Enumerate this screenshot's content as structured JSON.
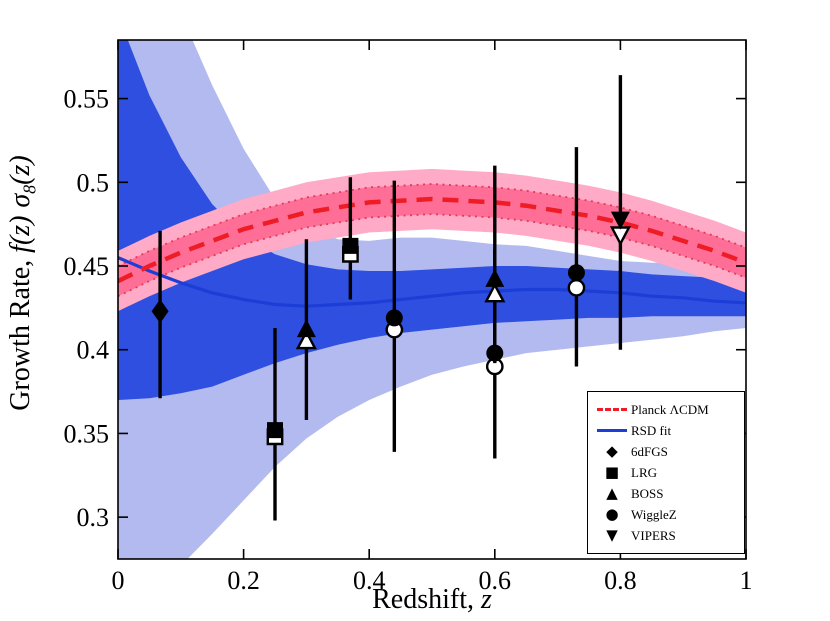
{
  "figure": {
    "background": "#ffffff"
  },
  "chart_data": {
    "type": "line",
    "title": "",
    "xlabel": "Redshift, z",
    "ylabel": "Growth Rate, f(z) σ_8(z)",
    "xlabel_parts": {
      "prefix": "Redshift, ",
      "variable": "z"
    },
    "ylabel_parts": {
      "prefix": "Growth Rate, ",
      "fz": "f(z)",
      "sigma": "σ",
      "sub": "8",
      "paren": "(z)"
    },
    "xlim": [
      0,
      1
    ],
    "ylim": [
      0.275,
      0.585
    ],
    "xticks": [
      0,
      0.2,
      0.4,
      0.6,
      0.8,
      1
    ],
    "xtick_labels": [
      "0",
      "0.2",
      "0.4",
      "0.6",
      "0.8",
      "1"
    ],
    "yticks": [
      0.3,
      0.35,
      0.4,
      0.45,
      0.5,
      0.55
    ],
    "ytick_labels": [
      "0.3",
      "0.35",
      "0.4",
      "0.45",
      "0.5",
      "0.55"
    ],
    "grid": false,
    "x": [
      0,
      0.05,
      0.1,
      0.15,
      0.2,
      0.25,
      0.3,
      0.35,
      0.4,
      0.45,
      0.5,
      0.55,
      0.6,
      0.65,
      0.7,
      0.75,
      0.8,
      0.85,
      0.9,
      0.95,
      1
    ],
    "series": [
      {
        "name": "Planck ΛCDM",
        "style": "dashed",
        "y": [
          0.441,
          0.45,
          0.458,
          0.465,
          0.472,
          0.477,
          0.482,
          0.485,
          0.488,
          0.489,
          0.49,
          0.489,
          0.488,
          0.486,
          0.483,
          0.48,
          0.476,
          0.471,
          0.465,
          0.459,
          0.452
        ],
        "inner_halfwidth": 0.009,
        "outer_halfwidth": 0.018
      },
      {
        "name": "RSD fit",
        "style": "solid",
        "y": [
          0.455,
          0.447,
          0.44,
          0.434,
          0.43,
          0.427,
          0.426,
          0.427,
          0.428,
          0.43,
          0.432,
          0.434,
          0.435,
          0.436,
          0.436,
          0.435,
          0.434,
          0.432,
          0.431,
          0.429,
          0.428
        ],
        "band68_upper": [
          0.6,
          0.552,
          0.515,
          0.487,
          0.468,
          0.457,
          0.451,
          0.448,
          0.447,
          0.447,
          0.448,
          0.449,
          0.45,
          0.45,
          0.449,
          0.448,
          0.447,
          0.445,
          0.444,
          0.443,
          0.442
        ],
        "band68_lower": [
          0.37,
          0.371,
          0.374,
          0.378,
          0.385,
          0.392,
          0.398,
          0.403,
          0.407,
          0.41,
          0.412,
          0.414,
          0.416,
          0.417,
          0.418,
          0.419,
          0.419,
          0.42,
          0.42,
          0.42,
          0.42
        ],
        "band95_upper": [
          0.62,
          0.62,
          0.601,
          0.558,
          0.52,
          0.49,
          0.474,
          0.466,
          0.465,
          0.467,
          0.467,
          0.465,
          0.463,
          0.462,
          0.459,
          0.456,
          0.453,
          0.452,
          0.452,
          0.453,
          0.455
        ],
        "band95_lower": [
          0.26,
          0.26,
          0.271,
          0.29,
          0.31,
          0.33,
          0.347,
          0.36,
          0.37,
          0.378,
          0.385,
          0.39,
          0.394,
          0.398,
          0.4,
          0.402,
          0.404,
          0.406,
          0.408,
          0.411,
          0.413
        ]
      }
    ],
    "points": [
      {
        "survey": "6dFGS",
        "marker": "diamond",
        "x": 0.067,
        "y": 0.423,
        "y_open": null,
        "err_lo": 0.371,
        "err_hi": 0.471
      },
      {
        "survey": "LRG",
        "marker": "square",
        "x": 0.25,
        "y": 0.352,
        "y_open": 0.348,
        "err_lo": 0.298,
        "err_hi": 0.413
      },
      {
        "survey": "BOSS",
        "marker": "triangle-up",
        "x": 0.3,
        "y": 0.412,
        "y_open": 0.405,
        "err_lo": 0.358,
        "err_hi": 0.466
      },
      {
        "survey": "LRG",
        "marker": "square",
        "x": 0.37,
        "y": 0.462,
        "y_open": 0.457,
        "err_lo": 0.43,
        "err_hi": 0.503
      },
      {
        "survey": "WiggleZ",
        "marker": "circle",
        "x": 0.44,
        "y": 0.419,
        "y_open": 0.412,
        "err_lo": 0.339,
        "err_hi": 0.501
      },
      {
        "survey": "WiggleZ",
        "marker": "circle",
        "x": 0.6,
        "y": 0.398,
        "y_open": 0.39,
        "err_lo": 0.335,
        "err_hi": 0.46
      },
      {
        "survey": "BOSS",
        "marker": "triangle-up",
        "x": 0.6,
        "y": 0.442,
        "y_open": 0.433,
        "err_lo": 0.392,
        "err_hi": 0.51
      },
      {
        "survey": "WiggleZ",
        "marker": "circle",
        "x": 0.73,
        "y": 0.446,
        "y_open": 0.437,
        "err_lo": 0.39,
        "err_hi": 0.521
      },
      {
        "survey": "VIPERS",
        "marker": "triangle-down",
        "x": 0.8,
        "y": 0.478,
        "y_open": 0.469,
        "err_lo": 0.4,
        "err_hi": 0.564
      }
    ],
    "colors": {
      "planck_line": "#ee1c25",
      "planck_band_inner": "#ff6e96",
      "planck_band_outer": "#ffaac6",
      "planck_dotted": "#e23b5a",
      "rsd_line": "#1c3ed6",
      "rsd_band68": "#2e4fe0",
      "rsd_band95": "#b3baf0",
      "marker": "#000000",
      "axis": "#000000",
      "background": "#ffffff"
    },
    "legend": {
      "position": "lower right",
      "entries": [
        {
          "label": "Planck ΛCDM",
          "sample": "dashed-red-line"
        },
        {
          "label": "RSD fit",
          "sample": "solid-blue-line"
        },
        {
          "label": "6dFGS",
          "glyph": "◆"
        },
        {
          "label": "LRG",
          "glyph": "■"
        },
        {
          "label": "BOSS",
          "glyph": "▲"
        },
        {
          "label": "WiggleZ",
          "glyph": "●"
        },
        {
          "label": "VIPERS",
          "glyph": "▼"
        }
      ]
    }
  }
}
